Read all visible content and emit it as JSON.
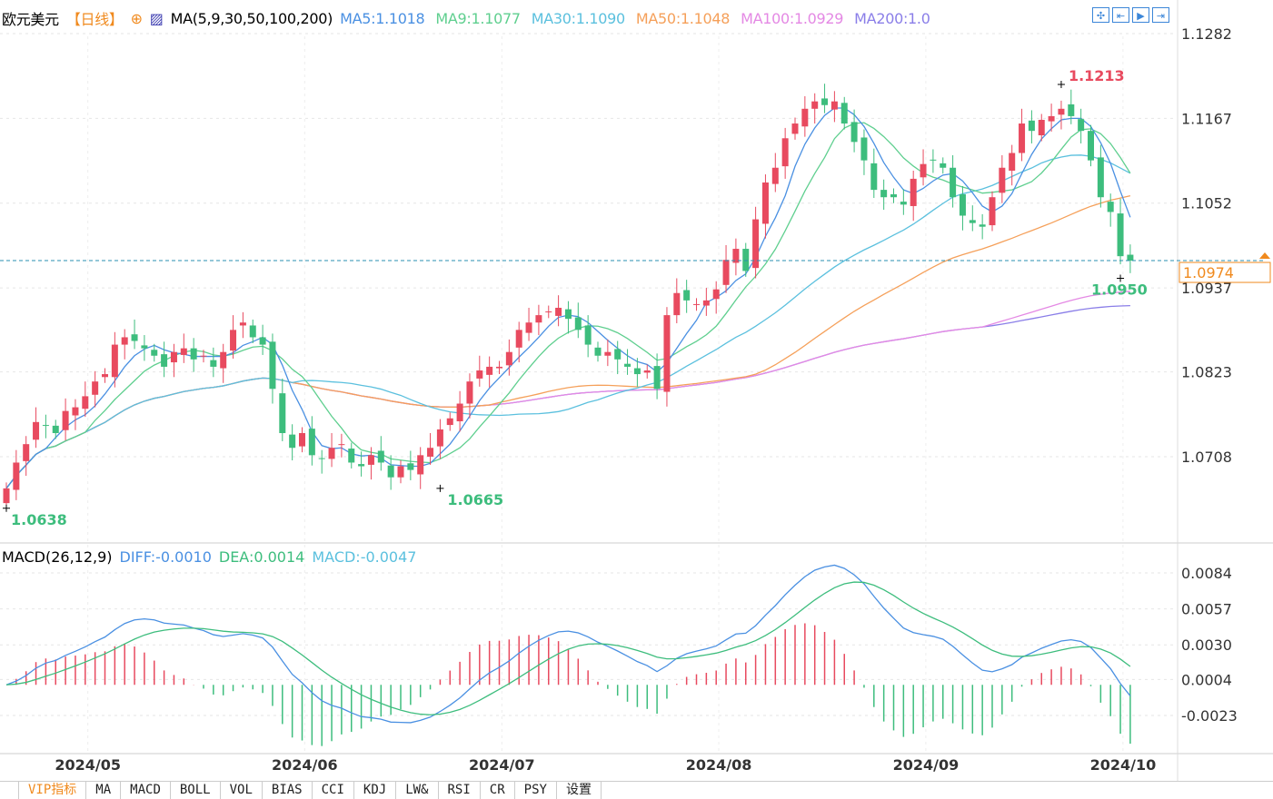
{
  "header": {
    "symbol": "欧元美元",
    "period": "【日线】",
    "indicator": "MA(5,9,30,50,100,200)",
    "ma_values": [
      {
        "label": "MA5:1.1018",
        "color": "#4a90e2"
      },
      {
        "label": "MA9:1.1077",
        "color": "#5fcf8f"
      },
      {
        "label": "MA30:1.1090",
        "color": "#5bc0de"
      },
      {
        "label": "MA50:1.1048",
        "color": "#f5a05a"
      },
      {
        "label": "MA100:1.0929",
        "color": "#e489e4"
      },
      {
        "label": "MA200:1.0",
        "color": "#8a7ee8"
      }
    ]
  },
  "toolbar": [
    "crosshair-icon",
    "scroll-start-icon",
    "play-icon",
    "exit-icon"
  ],
  "macd_header": {
    "title": "MACD(26,12,9)",
    "diff": "DIFF:-0.0010",
    "dea": "DEA:0.0014",
    "macd": "MACD:-0.0047"
  },
  "colors": {
    "up": "#e84a5f",
    "down": "#3dbd7d",
    "diff": "#4a90e2",
    "dea": "#3dbd7d",
    "last": "#f08a1e"
  },
  "chart_data": {
    "type": "candlestick",
    "price_ticks": [
      "1.1282",
      "1.1167",
      "1.1052",
      "1.0937",
      "1.0823",
      "1.0708"
    ],
    "price_range": [
      1.06,
      1.133
    ],
    "macd_ticks": [
      "0.0084",
      "0.0057",
      "0.0030",
      "0.0004",
      "-0.0023"
    ],
    "date_labels": [
      {
        "label": "2024/05",
        "index": 9
      },
      {
        "label": "2024/06",
        "index": 31
      },
      {
        "label": "2024/07",
        "index": 51
      },
      {
        "label": "2024/08",
        "index": 73
      },
      {
        "label": "2024/09",
        "index": 94
      },
      {
        "label": "2024/10",
        "index": 114
      }
    ],
    "closes": [
      1.0665,
      1.07,
      1.0725,
      1.0755,
      1.075,
      1.074,
      1.077,
      1.0775,
      1.079,
      1.081,
      1.082,
      1.086,
      1.087,
      1.0865,
      1.0855,
      1.0845,
      1.083,
      1.085,
      1.0855,
      1.084,
      1.0845,
      1.083,
      1.085,
      1.088,
      1.089,
      1.087,
      1.086,
      1.08,
      1.074,
      1.072,
      1.074,
      1.071,
      1.0705,
      1.072,
      1.0725,
      1.07,
      1.0695,
      1.071,
      1.07,
      1.068,
      1.0695,
      1.069,
      1.071,
      1.072,
      1.0745,
      1.076,
      1.078,
      1.081,
      1.0825,
      1.083,
      1.083,
      1.085,
      1.088,
      1.089,
      1.09,
      1.0905,
      1.091,
      1.0895,
      1.088,
      1.086,
      1.0845,
      1.085,
      1.084,
      1.083,
      1.082,
      1.0825,
      1.08,
      1.09,
      1.093,
      1.092,
      1.0915,
      1.092,
      1.0935,
      1.0975,
      1.099,
      1.096,
      1.103,
      1.108,
      1.11,
      1.114,
      1.116,
      1.118,
      1.119,
      1.1185,
      1.119,
      1.116,
      1.1135,
      1.111,
      1.107,
      1.106,
      1.106,
      1.105,
      1.1085,
      1.1105,
      1.111,
      1.11,
      1.106,
      1.1035,
      1.1025,
      1.102,
      1.106,
      1.11,
      1.112,
      1.116,
      1.115,
      1.1165,
      1.117,
      1.118,
      1.117,
      1.115,
      1.111,
      1.106,
      1.104,
      1.098,
      1.0974
    ],
    "annotations": [
      {
        "label": "1.1213",
        "index": 107,
        "price": 1.1213,
        "color": "#e84a5f"
      },
      {
        "label": "1.0950",
        "index": 113,
        "price": 1.095,
        "color": "#3dbd7d"
      },
      {
        "label": "1.0665",
        "index": 44,
        "price": 1.0665,
        "color": "#3dbd7d"
      },
      {
        "label": "1.0638",
        "index": 0,
        "price": 1.0638,
        "color": "#3dbd7d"
      }
    ],
    "last_price": "1.0974"
  },
  "tabs": [
    "",
    "VIP指标",
    "MA",
    "MACD",
    "BOLL",
    "VOL",
    "BIAS",
    "CCI",
    "KDJ",
    "LW&",
    "RSI",
    "CR",
    "PSY",
    "设置"
  ]
}
